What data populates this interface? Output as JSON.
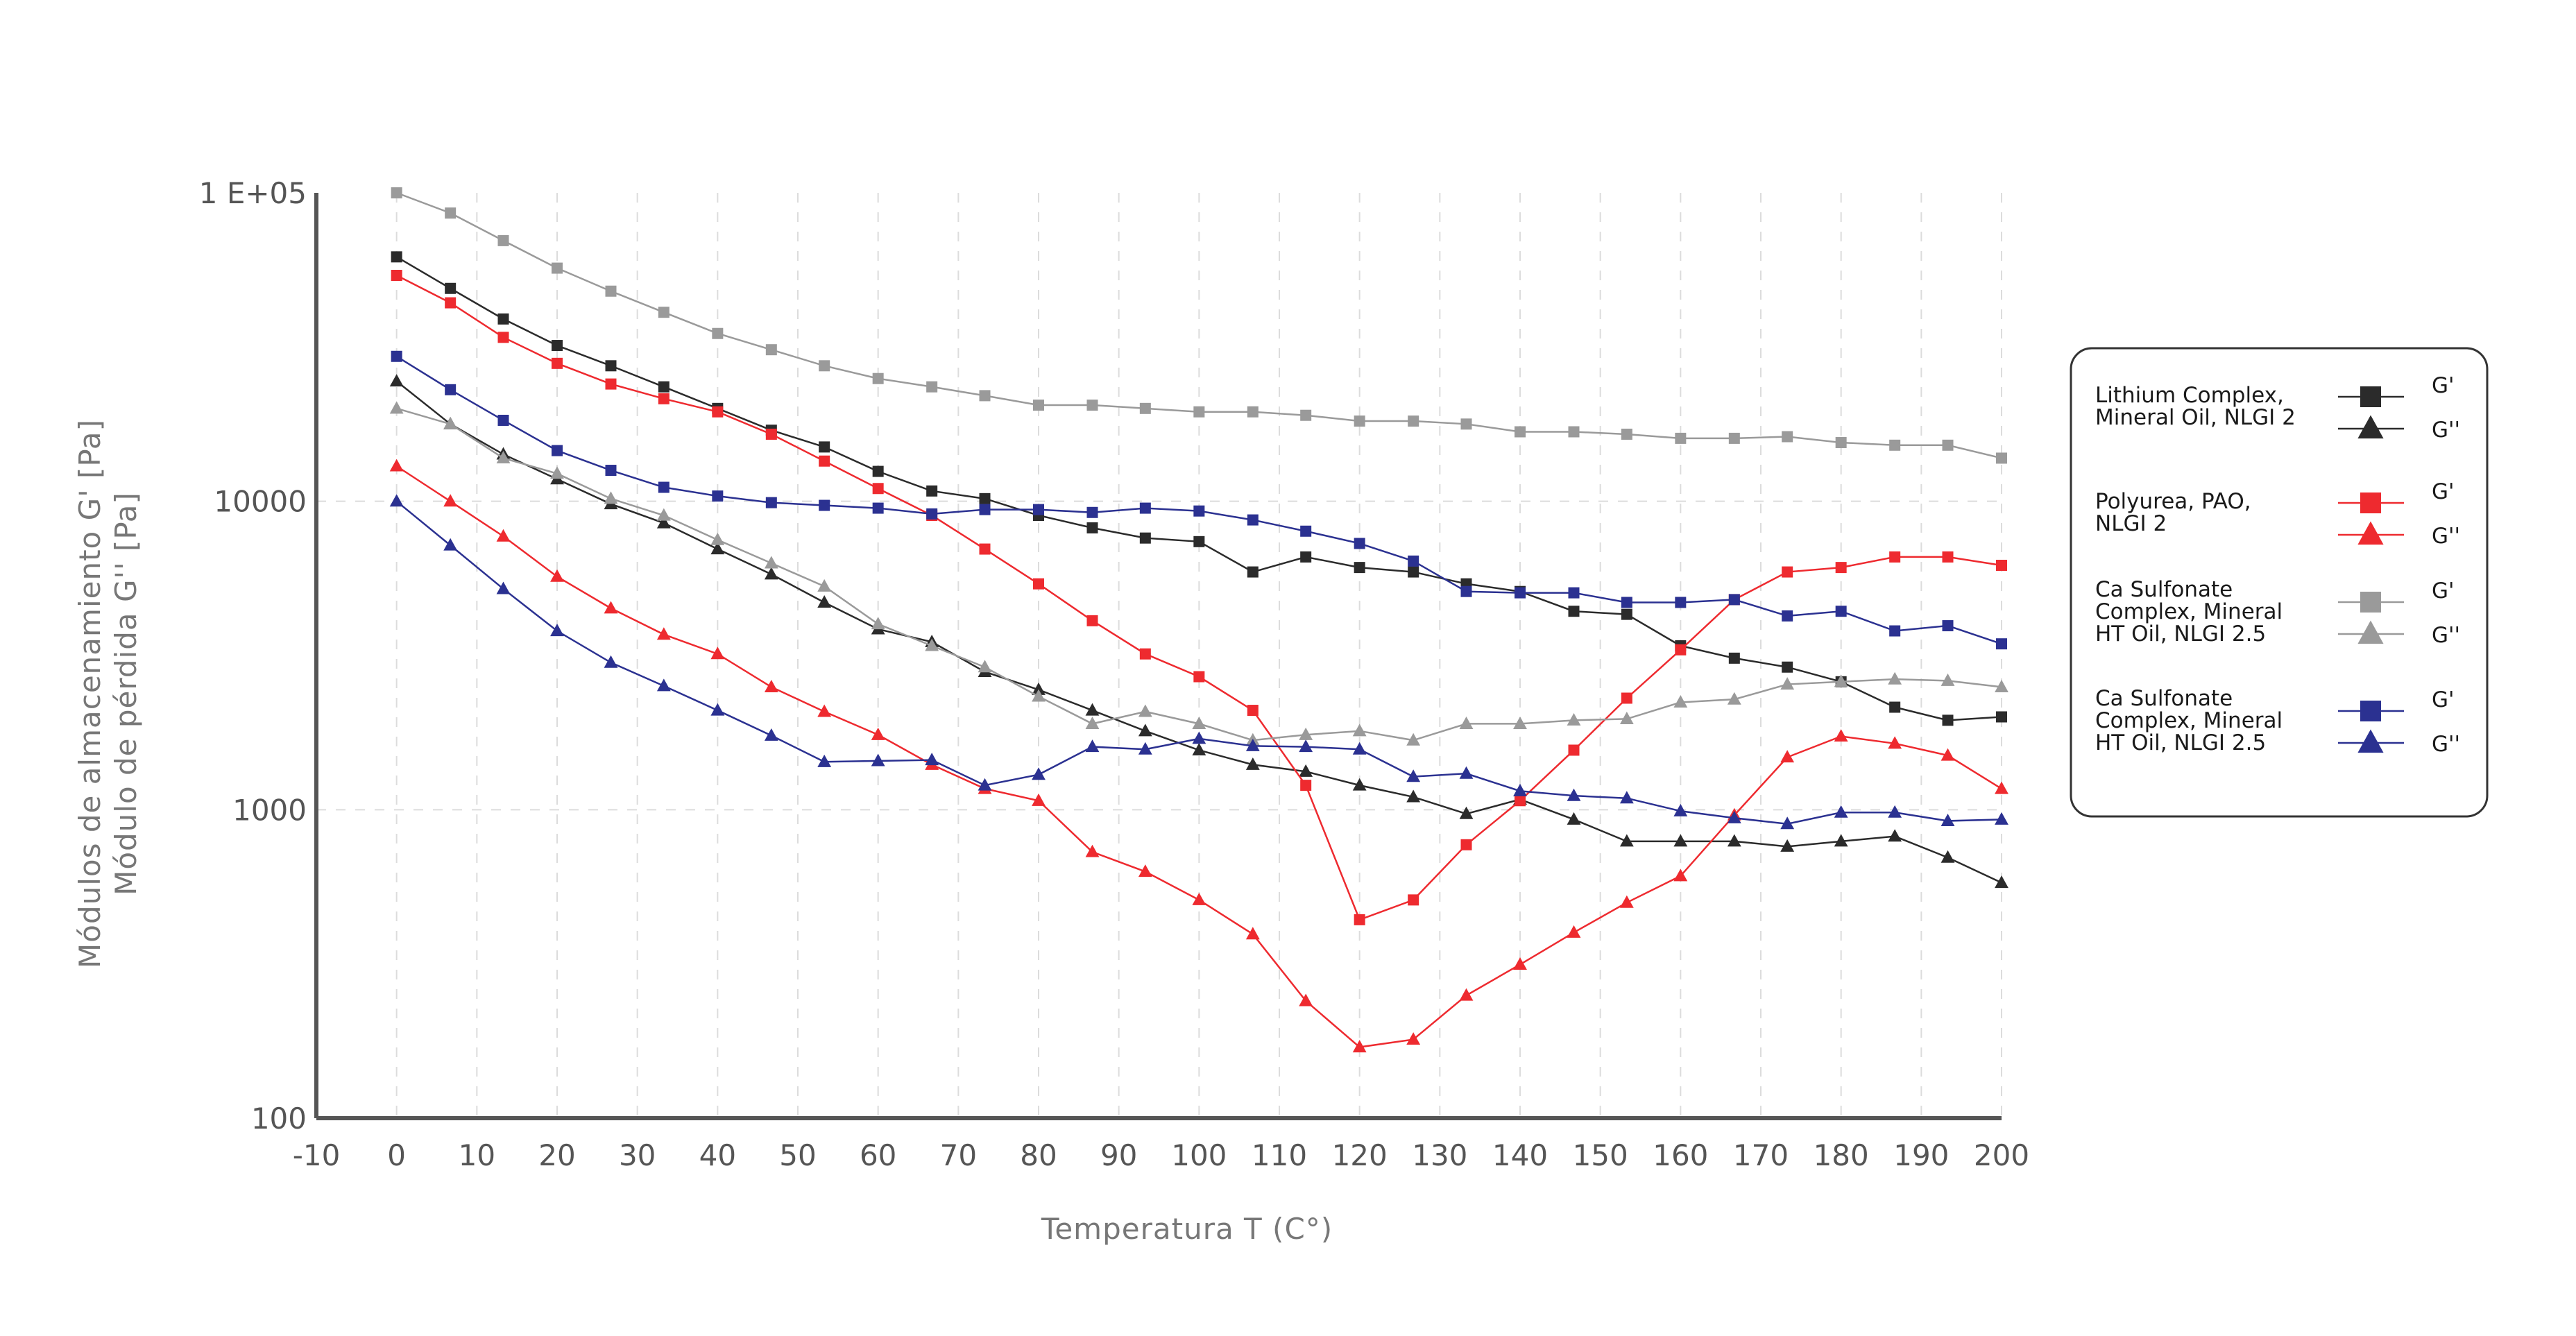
{
  "chart_data": {
    "type": "line",
    "xlabel": "Temperatura  T  (C°)",
    "ylabel_lines": [
      "Módulos de almacenamiento G' [Pa]",
      "Módulo de pérdida G'' [Pa]"
    ],
    "xlim": [
      -10,
      200
    ],
    "ylim": [
      100,
      100000
    ],
    "y_scale": "log",
    "x_ticks": [
      -10,
      0,
      10,
      20,
      30,
      40,
      50,
      60,
      70,
      80,
      90,
      100,
      110,
      120,
      130,
      140,
      150,
      160,
      170,
      180,
      190,
      200
    ],
    "x_tick_labels": [
      "-10",
      "0",
      "10",
      "20",
      "30",
      "40",
      "50",
      "60",
      "70",
      "80",
      "90",
      "100",
      "110",
      "120",
      "130",
      "140",
      "150",
      "160",
      "170",
      "180",
      "190",
      "200"
    ],
    "y_ticks": [
      100,
      1000,
      10000,
      100000
    ],
    "y_tick_labels": [
      "100",
      "1000",
      "10000",
      "1 E+05"
    ],
    "grid": true,
    "legend_position": "right",
    "x": [
      0,
      6.7,
      13.3,
      20,
      26.7,
      33.3,
      40,
      46.7,
      53.3,
      60,
      66.7,
      73.3,
      80,
      86.7,
      93.3,
      100,
      106.7,
      113.3,
      120,
      126.7,
      133.3,
      140,
      146.7,
      153.3,
      160,
      166.7,
      173.3,
      180,
      186.7,
      193.3,
      200
    ],
    "series": [
      {
        "group": "Lithium Complex, Mineral Oil, NLGI 2",
        "name": "G'",
        "marker": "square",
        "color": "#2b2b2b",
        "values": [
          62000,
          49000,
          39000,
          32000,
          27500,
          23500,
          20000,
          17000,
          15000,
          12500,
          10800,
          10200,
          9000,
          8200,
          7600,
          7400,
          5900,
          6600,
          6100,
          5900,
          5400,
          5100,
          4400,
          4300,
          3400,
          3100,
          2900,
          2600,
          2150,
          1950,
          2000
        ]
      },
      {
        "group": "Lithium Complex, Mineral Oil, NLGI 2",
        "name": "G''",
        "marker": "triangle",
        "color": "#2b2b2b",
        "values": [
          24500,
          17800,
          14200,
          11800,
          9800,
          8500,
          7000,
          5800,
          4700,
          3850,
          3500,
          2800,
          2450,
          2100,
          1800,
          1560,
          1400,
          1330,
          1200,
          1100,
          970,
          1080,
          930,
          790,
          790,
          790,
          760,
          790,
          820,
          700,
          580
        ]
      },
      {
        "group": "Polyurea, PAO, NLGI 2",
        "name": "G'",
        "marker": "square",
        "color": "#ee2a2f",
        "values": [
          54000,
          44000,
          34000,
          28000,
          24000,
          21500,
          19500,
          16500,
          13500,
          11000,
          9000,
          7000,
          5400,
          4100,
          3200,
          2700,
          2100,
          1200,
          440,
          510,
          770,
          1070,
          1560,
          2300,
          3300,
          4800,
          5900,
          6100,
          6600,
          6600,
          6200
        ]
      },
      {
        "group": "Polyurea, PAO, NLGI 2",
        "name": "G''",
        "marker": "triangle",
        "color": "#ee2a2f",
        "values": [
          13000,
          10000,
          7700,
          5700,
          4500,
          3700,
          3200,
          2500,
          2080,
          1750,
          1400,
          1170,
          1070,
          730,
          630,
          510,
          395,
          240,
          170,
          180,
          250,
          315,
          400,
          500,
          610,
          960,
          1480,
          1730,
          1640,
          1500,
          1170
        ]
      },
      {
        "group": "Ca Sulfonate Complex, Mineral HT Oil, NLGI 2.5",
        "name": "G'",
        "marker": "square",
        "color": "#9a9a9a",
        "values": [
          100000,
          86000,
          70000,
          57000,
          48000,
          41000,
          35000,
          31000,
          27500,
          25000,
          23500,
          22000,
          20500,
          20500,
          20000,
          19500,
          19500,
          19000,
          18200,
          18200,
          17800,
          16800,
          16800,
          16500,
          16000,
          16000,
          16200,
          15500,
          15200,
          15200,
          13800
        ]
      },
      {
        "group": "Ca Sulfonate Complex, Mineral HT Oil, NLGI 2.5",
        "name": "G''",
        "marker": "triangle",
        "color": "#9a9a9a",
        "values": [
          20000,
          17800,
          13800,
          12300,
          10200,
          9000,
          7500,
          6300,
          5300,
          4000,
          3400,
          2900,
          2330,
          1900,
          2080,
          1900,
          1680,
          1750,
          1800,
          1680,
          1900,
          1900,
          1950,
          1970,
          2230,
          2280,
          2550,
          2600,
          2650,
          2620,
          2500
        ]
      },
      {
        "group": "Ca Sulfonate Complex, Mineral HT Oil, NLGI 2.5",
        "name": "G'",
        "marker": "square",
        "color": "#2b3191",
        "values": [
          29500,
          23000,
          18300,
          14600,
          12600,
          11100,
          10400,
          9900,
          9700,
          9500,
          9100,
          9400,
          9400,
          9200,
          9500,
          9300,
          8700,
          8000,
          7300,
          6400,
          5100,
          5050,
          5050,
          4700,
          4700,
          4800,
          4250,
          4400,
          3800,
          3950,
          3450
        ]
      },
      {
        "group": "Ca Sulfonate Complex, Mineral HT Oil, NLGI 2.5",
        "name": "G''",
        "marker": "triangle",
        "color": "#2b3191",
        "values": [
          10000,
          7200,
          5200,
          3800,
          3000,
          2520,
          2100,
          1740,
          1430,
          1440,
          1450,
          1200,
          1300,
          1600,
          1570,
          1700,
          1610,
          1600,
          1570,
          1280,
          1310,
          1150,
          1110,
          1090,
          990,
          940,
          900,
          980,
          980,
          920,
          930
        ]
      }
    ]
  },
  "legend": [
    {
      "label": "Lithium Complex, Mineral Oil, NLGI 2",
      "lines": [
        "Lithium Complex,",
        "Mineral Oil, NLGI 2"
      ],
      "color": "#2b2b2b",
      "g1": "G'",
      "g2": "G''"
    },
    {
      "label": "Polyurea, PAO, NLGI 2",
      "lines": [
        "Polyurea, PAO,",
        "NLGI 2"
      ],
      "color": "#ee2a2f",
      "g1": "G'",
      "g2": "G''"
    },
    {
      "label": "Ca Sulfonate Complex, Mineral HT Oil, NLGI 2.5",
      "lines": [
        "Ca Sulfonate",
        "Complex, Mineral",
        "HT Oil, NLGI 2.5"
      ],
      "color": "#9a9a9a",
      "g1": "G'",
      "g2": "G''"
    },
    {
      "label": "Ca Sulfonate Complex, Mineral HT Oil, NLGI 2.5",
      "lines": [
        "Ca Sulfonate",
        "Complex, Mineral",
        "HT Oil, NLGI 2.5"
      ],
      "color": "#2b3191",
      "g1": "G'",
      "g2": "G''"
    }
  ]
}
